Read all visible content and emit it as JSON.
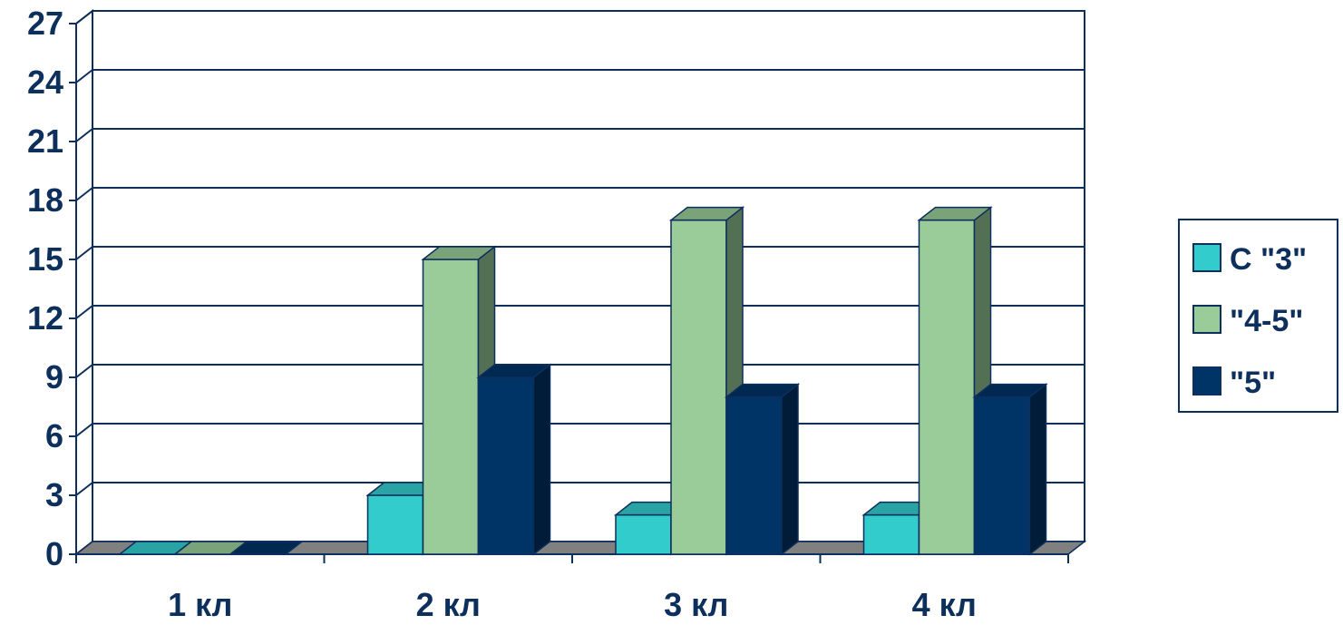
{
  "chart_data": {
    "type": "bar",
    "style": "3d-clustered-column",
    "categories": [
      "1 кл",
      "2 кл",
      "3 кл",
      "4 кл"
    ],
    "series": [
      {
        "name": "С \"3\"",
        "values": [
          0,
          3,
          2,
          2
        ],
        "color": "#33cccc"
      },
      {
        "name": "\"4-5\"",
        "values": [
          0,
          15,
          17,
          17
        ],
        "color": "#99cc99"
      },
      {
        "name": "\"5\"",
        "values": [
          0,
          9,
          8,
          8
        ],
        "color": "#003366"
      }
    ],
    "y_ticks": [
      "0",
      "3",
      "6",
      "9",
      "12",
      "15",
      "18",
      "21",
      "24",
      "27"
    ],
    "ylim": [
      0,
      27
    ],
    "grid": true,
    "legend_position": "right",
    "title": "",
    "xlabel": "",
    "ylabel": ""
  }
}
